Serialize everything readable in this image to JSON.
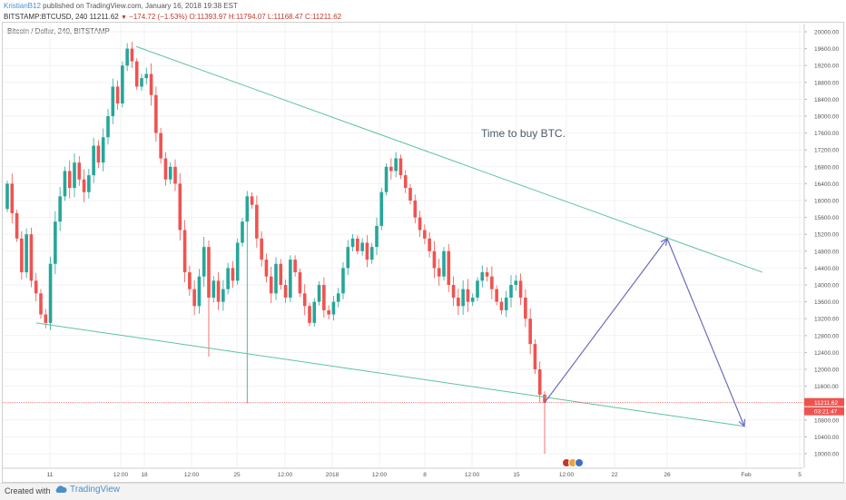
{
  "header": {
    "author": "KristianB12",
    "published": "published on TradingView.com, January 16, 2018 19:38 EST",
    "symbol": "BITSTAMP:BTCUSD, 240",
    "last": "11211.62",
    "change": "−174.72 (−1.53%)",
    "ohlc": "O:11393.97 H:11794.07 L:11168.47 C:11211.62"
  },
  "chart_legend": "Bitcoin / Dollar, 240, BITSTAMP",
  "footer": {
    "created_with": "Created with",
    "brand": "TradingView"
  },
  "colors": {
    "up": "#26a69a",
    "down": "#ef5350",
    "trendline": "#5cc3a0",
    "projection": "#6b6fbd",
    "price_line": "#ef5350"
  },
  "chart_data": {
    "type": "candlestick",
    "symbol": "BITSTAMP:BTCUSD",
    "interval": "240",
    "ylim": [
      9600,
      20200
    ],
    "y_ticks": [
      10000,
      10400,
      10800,
      11200,
      11600,
      12000,
      12400,
      12800,
      13200,
      13600,
      14000,
      14400,
      14800,
      15200,
      15600,
      16000,
      16400,
      16800,
      17200,
      17600,
      18000,
      18400,
      18800,
      19200,
      19600,
      20000
    ],
    "x_ticks": [
      "11",
      "12:00",
      "18",
      "12:00",
      "25",
      "12:00",
      "2018",
      "12:00",
      "8",
      "12:00",
      "15",
      "12:00",
      "22",
      "26",
      "Feb",
      "5"
    ],
    "current_price": 11211.62,
    "price_label": "11211.62",
    "countdown_label": "03:21:47",
    "annotation": "Time to buy BTC.",
    "closes": [
      16400,
      15700,
      15100,
      14300,
      15200,
      14100,
      13800,
      13300,
      13100,
      14500,
      15500,
      16100,
      16700,
      16300,
      16900,
      16500,
      16200,
      16600,
      17300,
      16900,
      17500,
      18000,
      18700,
      18300,
      19200,
      19600,
      19300,
      18700,
      18900,
      19000,
      18500,
      17600,
      17000,
      16500,
      16800,
      16400,
      15300,
      14300,
      13900,
      13500,
      14200,
      14900,
      13700,
      14100,
      13600,
      13900,
      14400,
      14100,
      15000,
      15500,
      16100,
      15900,
      15100,
      14600,
      14200,
      13800,
      14500,
      14000,
      13700,
      14600,
      14300,
      13800,
      13500,
      13100,
      13600,
      14000,
      13400,
      13300,
      13600,
      13800,
      14400,
      14900,
      15100,
      14800,
      15000,
      14600,
      14900,
      15400,
      16200,
      16800,
      16700,
      17000,
      16600,
      16300,
      16000,
      15600,
      15300,
      15100,
      14800,
      14400,
      14200,
      14800,
      14000,
      13700,
      13500,
      13900,
      13600,
      13700,
      14100,
      14300,
      14200,
      13900,
      13600,
      13400,
      13700,
      14000,
      14100,
      13700,
      13200,
      12600,
      12000,
      11400,
      11211.62
    ],
    "trendlines": [
      {
        "name": "upper",
        "from": [
          "17 Dec",
          19650
        ],
        "to": [
          "Feb 2",
          14300
        ]
      },
      {
        "name": "lower",
        "from": [
          "10 Dec",
          13100
        ],
        "to": [
          "Jan 31",
          10650
        ]
      }
    ],
    "projection": [
      [
        "Jan 16",
        11211.62
      ],
      [
        "Jan 26",
        15100
      ],
      [
        "Jan 31",
        10650
      ]
    ]
  }
}
